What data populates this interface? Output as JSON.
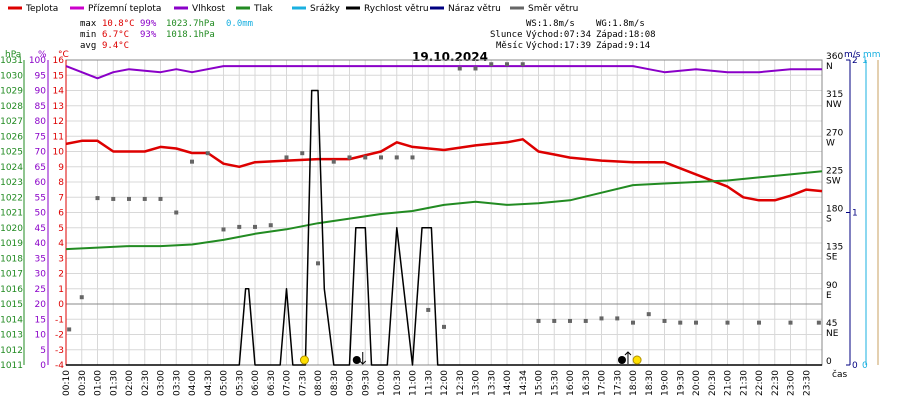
{
  "legend": [
    {
      "label": "Teplota",
      "color": "#dd0000"
    },
    {
      "label": "Přízemní teplota",
      "color": "#cc00cc"
    },
    {
      "label": "Vlhkost",
      "color": "#8a00c8"
    },
    {
      "label": "Tlak",
      "color": "#228b22"
    },
    {
      "label": "Srážky",
      "color": "#1ab0e0"
    },
    {
      "label": "Rychlost větru",
      "color": "#000000"
    },
    {
      "label": "Náraz větru",
      "color": "#000080"
    },
    {
      "label": "Směr větru",
      "color": "#666666"
    }
  ],
  "stats": {
    "max_label": "max",
    "max_temp": "10.8°C",
    "max_hum": "99%",
    "max_press": "1023.7hPa",
    "max_rain": "0.0mm",
    "min_label": "min",
    "min_temp": "6.7°C",
    "min_hum": "93%",
    "min_press": "1018.1hPa",
    "avg_label": "avg",
    "avg_temp": "9.4°C"
  },
  "wind_info": {
    "ws": "WS:1.8m/s",
    "wg": "WG:1.8m/s"
  },
  "sun": {
    "label": "Slunce",
    "rise": "Východ:07:34",
    "set": "Západ:18:08"
  },
  "moon": {
    "label": "Měsíc",
    "rise": "Východ:17:39",
    "set": "Západ:9:14"
  },
  "date": "19.10.2024",
  "axis_units": {
    "hpa": "hPa",
    "pct": "%",
    "degc": "°C",
    "ms": "m/s",
    "mm": "mm",
    "time": "čas"
  },
  "axis_colors": {
    "hpa": "#228b22",
    "pct": "#8a00c8",
    "degc": "#dd0000",
    "ms": "#000080",
    "mm": "#1ab0e0",
    "dir": "#666666",
    "grid": "#d8d8d8",
    "zero": "#888888",
    "gust_line": "#c8a060"
  },
  "chart_data": {
    "type": "line",
    "title": "19.10.2024",
    "xlabel": "čas",
    "x_ticks": [
      "00:10",
      "00:30",
      "01:00",
      "01:30",
      "02:00",
      "02:30",
      "03:00",
      "03:30",
      "04:00",
      "04:30",
      "05:00",
      "05:30",
      "06:00",
      "06:30",
      "07:00",
      "07:30",
      "08:00",
      "08:30",
      "09:00",
      "09:30",
      "10:00",
      "10:30",
      "11:00",
      "11:30",
      "12:00",
      "12:30",
      "13:00",
      "13:30",
      "14:00",
      "14:34",
      "15:00",
      "15:30",
      "16:00",
      "16:30",
      "17:00",
      "17:30",
      "18:00",
      "18:30",
      "19:00",
      "19:30",
      "20:00",
      "20:30",
      "21:00",
      "21:30",
      "22:00",
      "22:30",
      "23:00",
      "23:30"
    ],
    "x_range_hours": [
      0,
      24
    ],
    "axes": {
      "pressure_hpa": {
        "range": [
          1011,
          1031
        ],
        "ticks": [
          "1011",
          "1012",
          "1013",
          "1014",
          "1015",
          "1016",
          "1017",
          "1018",
          "1019",
          "1020",
          "1021",
          "1022",
          "1023",
          "1024",
          "1025",
          "1026",
          "1027",
          "1028",
          "1029",
          "1030",
          "1031"
        ]
      },
      "humidity_pct": {
        "range": [
          0,
          100
        ],
        "ticks": [
          "0",
          "5",
          "10",
          "15",
          "20",
          "25",
          "30",
          "35",
          "40",
          "45",
          "50",
          "55",
          "60",
          "65",
          "70",
          "75",
          "80",
          "85",
          "90",
          "95",
          "100"
        ]
      },
      "temperature_c": {
        "range": [
          -4,
          16
        ],
        "ticks": [
          "-4",
          "-3",
          "-2",
          "-1",
          "0",
          "1",
          "2",
          "3",
          "4",
          "5",
          "6",
          "7",
          "8",
          "9",
          "10",
          "11",
          "12",
          "13",
          "14",
          "15",
          "16"
        ]
      },
      "direction_deg": {
        "range": [
          0,
          360
        ],
        "ticks": [
          "0",
          "45",
          "90",
          "135",
          "180",
          "225",
          "270",
          "315",
          "360"
        ],
        "labels": [
          "",
          "NE",
          "E",
          "SE",
          "S",
          "SW",
          "W",
          "NW",
          "N"
        ]
      },
      "wind_ms": {
        "range": [
          0,
          2
        ],
        "ticks": [
          "0",
          "1",
          "2"
        ]
      },
      "rain_mm": {
        "range": [
          0,
          1
        ],
        "ticks": [
          "0",
          "1"
        ]
      }
    },
    "grid": true,
    "series": [
      {
        "name": "Teplota",
        "axis": "temperature_c",
        "x": [
          0,
          0.5,
          1.0,
          1.5,
          2.5,
          3.0,
          3.5,
          4.0,
          4.5,
          5.0,
          5.5,
          6.0,
          7.0,
          8.0,
          9.0,
          10.0,
          10.5,
          11.0,
          12.0,
          13.0,
          14.0,
          14.5,
          15.0,
          15.5,
          16.0,
          17.0,
          18.0,
          19.0,
          20.0,
          21.0,
          21.5,
          22.0,
          22.5,
          23.0,
          23.5,
          24.0
        ],
        "y": [
          10.5,
          10.7,
          10.7,
          10.0,
          10.0,
          10.3,
          10.2,
          9.9,
          9.9,
          9.2,
          9.0,
          9.3,
          9.4,
          9.5,
          9.5,
          10.0,
          10.6,
          10.3,
          10.1,
          10.4,
          10.6,
          10.8,
          10.0,
          9.8,
          9.6,
          9.4,
          9.3,
          9.3,
          8.5,
          7.7,
          7.0,
          6.8,
          6.8,
          7.1,
          7.5,
          7.4
        ]
      },
      {
        "name": "Vlhkost",
        "axis": "humidity_pct",
        "x": [
          0,
          0.5,
          1.0,
          1.5,
          2.0,
          3.0,
          3.5,
          4.0,
          5.0,
          6.0,
          7.0,
          8.0,
          9.0,
          12.0,
          16.0,
          18.0,
          18.5,
          19.0,
          20.0,
          21.0,
          22.0,
          23.0,
          24.0
        ],
        "y": [
          98,
          96,
          94,
          96,
          97,
          96,
          97,
          96,
          98,
          98,
          98,
          98,
          98,
          98,
          98,
          98,
          97,
          96,
          97,
          96,
          96,
          97,
          97
        ]
      },
      {
        "name": "Tlak",
        "axis": "pressure_hpa",
        "x": [
          0,
          1,
          2,
          3,
          4,
          5,
          6,
          7,
          8,
          9,
          10,
          11,
          12,
          13,
          14,
          15,
          16,
          17,
          18,
          19,
          20,
          21,
          22,
          23,
          24
        ],
        "y": [
          1018.6,
          1018.7,
          1018.8,
          1018.8,
          1018.9,
          1019.2,
          1019.6,
          1019.9,
          1020.3,
          1020.6,
          1020.9,
          1021.1,
          1021.5,
          1021.7,
          1021.5,
          1021.6,
          1021.8,
          1022.3,
          1022.8,
          1022.9,
          1023.0,
          1023.1,
          1023.3,
          1023.5,
          1023.7
        ]
      },
      {
        "name": "Rychlost větru",
        "axis": "wind_ms",
        "x": [
          0,
          5.5,
          5.7,
          5.8,
          6.0,
          6.8,
          7.0,
          7.2,
          7.6,
          7.8,
          8.0,
          8.2,
          8.5,
          8.7,
          9.0,
          9.2,
          9.5,
          9.7,
          10.2,
          10.5,
          11.0,
          11.3,
          11.6,
          11.8,
          12.3,
          24.0
        ],
        "y": [
          0,
          0,
          0.5,
          0.5,
          0,
          0,
          0.5,
          0,
          0,
          1.8,
          1.8,
          0.5,
          0,
          0,
          0,
          0.9,
          0.9,
          0,
          0,
          0.9,
          0,
          0.9,
          0.9,
          0,
          0,
          0
        ]
      },
      {
        "name": "Směr větru",
        "axis": "direction_deg",
        "x": [
          0.1,
          0.5,
          1.0,
          1.5,
          2.0,
          2.5,
          3.0,
          3.5,
          4.0,
          4.5,
          5.0,
          5.5,
          6.0,
          6.5,
          7.0,
          7.5,
          8.0,
          8.5,
          9.0,
          9.5,
          10.0,
          10.5,
          11.0,
          11.5,
          12.0,
          12.5,
          13.0,
          13.5,
          14.0,
          14.5,
          15.0,
          15.5,
          16.0,
          16.5,
          17.0,
          17.5,
          18.0,
          18.5,
          19.0,
          19.5,
          20.0,
          21.0,
          22.0,
          23.0,
          23.9
        ],
        "y": [
          42,
          80,
          197,
          196,
          196,
          196,
          196,
          180,
          240,
          250,
          160,
          163,
          163,
          165,
          245,
          250,
          120,
          240,
          245,
          245,
          245,
          245,
          245,
          65,
          45,
          350,
          350,
          355,
          355,
          355,
          52,
          52,
          52,
          52,
          55,
          55,
          50,
          60,
          52,
          50,
          50,
          50,
          50,
          50,
          50
        ]
      }
    ],
    "markers": [
      {
        "name": "sunrise",
        "x": 7.57
      },
      {
        "name": "sunset",
        "x": 18.13
      },
      {
        "name": "moonrise",
        "x": 17.65
      },
      {
        "name": "moonset",
        "x": 9.23
      }
    ]
  }
}
